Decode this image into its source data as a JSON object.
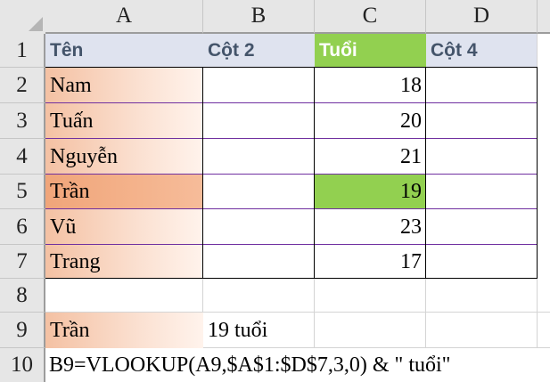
{
  "columns": [
    "A",
    "B",
    "C",
    "D"
  ],
  "rows": [
    "1",
    "2",
    "3",
    "4",
    "5",
    "6",
    "7",
    "8",
    "9",
    "10"
  ],
  "header_row": {
    "a": "Tên",
    "b": "Cột 2",
    "c": "Tuổi",
    "d": "Cột 4"
  },
  "data": [
    {
      "name": "Nam",
      "age": "18"
    },
    {
      "name": "Tuấn",
      "age": "20"
    },
    {
      "name": "Nguyễn",
      "age": "21"
    },
    {
      "name": "Trần",
      "age": "19"
    },
    {
      "name": "Vũ",
      "age": "23"
    },
    {
      "name": "Trang",
      "age": "17"
    }
  ],
  "lookup": {
    "a9": "Trần",
    "b9": "19 tuổi"
  },
  "formula_note": "B9=VLOOKUP(A9,$A$1:$D$7,3,0) & \" tuổi\"",
  "colors": {
    "header_text": "#44546a",
    "highlight_green": "#92d050",
    "name_fill": "#f4c1a3",
    "selected_name_fill": "#f0a57a",
    "row_border": "#7030a0"
  }
}
